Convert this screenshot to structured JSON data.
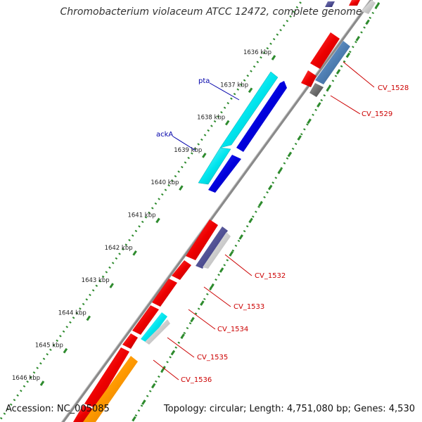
{
  "title": "Chromobacterium violaceum ATCC 12472, complete genome",
  "accession": "Accession: NC_005085",
  "summary": "Topology: circular; Length: 4,751,080 bp; Genes: 4,530",
  "scale_labels": [
    "1636 kbp",
    "1637 kbp",
    "1638 kbp",
    "1639 kbp",
    "1640 kbp",
    "1641 kbp",
    "1642 kbp",
    "1643 kbp",
    "1644 kbp",
    "1645 kbp",
    "1646 kbp"
  ],
  "gene_labels": {
    "pta": "pta",
    "ackA": "ackA",
    "cv1528": "CV_1528",
    "cv1529": "CV_1529",
    "cv1532": "CV_1532",
    "cv1533": "CV_1533",
    "cv1534": "CV_1534",
    "cv1535": "CV_1535",
    "cv1536": "CV_1536"
  },
  "colors": {
    "backbone": "#8a8a8a",
    "tick_green": "#2e8b2e",
    "red_gene": "#ee0000",
    "cyan_gene": "#00e5ee",
    "blue_gene": "#0000dd",
    "steel_gene": "#4f7fb4",
    "grey_gene": "#666666",
    "orange_gene": "#ff9900",
    "label_red": "#cc0000",
    "label_blue": "#0000aa"
  }
}
